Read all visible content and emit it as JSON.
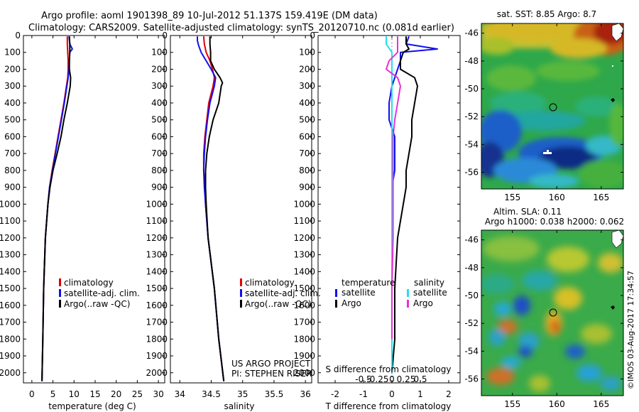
{
  "header": {
    "line1": "Argo profile: aoml 1901398_89 10-Jul-2012 51.137S 159.419E (DM data)",
    "line2": "Climatology: CARS2009. Satellite-adjusted climatology: synTS_20120710.nc (0.081d earlier)"
  },
  "colors": {
    "climatology": "#e00000",
    "satellite": "#1010ee",
    "argo": "#000000",
    "salinity_satellite": "#22e0e8",
    "salinity_argo": "#e830d8"
  },
  "chart_data": [
    {
      "type": "line",
      "id": "temperature",
      "xlabel": "temperature (deg C)",
      "xticks": [
        0,
        5,
        10,
        15,
        20,
        25,
        30
      ],
      "xlim": [
        -2,
        31.5
      ],
      "yticks": [
        0,
        100,
        200,
        300,
        400,
        500,
        600,
        700,
        800,
        900,
        1000,
        1100,
        1200,
        1300,
        1400,
        1500,
        1600,
        1700,
        1800,
        1900,
        2000
      ],
      "ylim": [
        0,
        2060
      ],
      "y_inverted": true,
      "legend": {
        "placement": "bottom-center",
        "entries": [
          "climatology",
          "satellite-adj. clim.",
          "Argo(..raw -QC)"
        ]
      },
      "series": [
        {
          "name": "climatology",
          "color_key": "climatology",
          "y": [
            5,
            50,
            100,
            150,
            200,
            250,
            300,
            400,
            500,
            600,
            700,
            800,
            900,
            1000,
            1200,
            1500,
            1800,
            2050
          ],
          "x": [
            8.4,
            8.4,
            8.5,
            8.6,
            8.6,
            8.5,
            8.2,
            7.6,
            6.9,
            6.2,
            5.5,
            4.8,
            4.2,
            3.8,
            3.2,
            2.8,
            2.6,
            2.4
          ]
        },
        {
          "name": "satellite-adj. clim.",
          "color_key": "satellite",
          "y": [
            5,
            50,
            80,
            100,
            150,
            200,
            250,
            300,
            400,
            500,
            600,
            700,
            800,
            900,
            1000,
            1200,
            1500,
            1800,
            2050
          ],
          "x": [
            8.8,
            9.0,
            9.6,
            9.0,
            8.9,
            8.8,
            8.6,
            8.3,
            7.7,
            7.0,
            6.3,
            5.6,
            4.9,
            4.2,
            3.8,
            3.2,
            2.8,
            2.6,
            2.4
          ]
        },
        {
          "name": "Argo(..raw -QC)",
          "color_key": "argo",
          "y": [
            5,
            50,
            100,
            150,
            200,
            250,
            300,
            400,
            500,
            600,
            700,
            800,
            900,
            1000,
            1200,
            1500,
            1800,
            2050
          ],
          "x": [
            8.9,
            9.0,
            9.0,
            8.9,
            8.9,
            9.2,
            9.1,
            8.4,
            7.6,
            6.9,
            6.0,
            5.0,
            4.3,
            3.8,
            3.2,
            2.8,
            2.6,
            2.4
          ]
        }
      ]
    },
    {
      "type": "line",
      "id": "salinity",
      "xlabel": "salinity",
      "xticks": [
        34,
        34.5,
        35,
        35.5,
        36
      ],
      "xlim": [
        33.85,
        36.1
      ],
      "yticks": [
        0,
        100,
        200,
        300,
        400,
        500,
        600,
        700,
        800,
        900,
        1000,
        1100,
        1200,
        1300,
        1400,
        1500,
        1600,
        1700,
        1800,
        1900,
        2000
      ],
      "ylim": [
        0,
        2060
      ],
      "y_inverted": true,
      "legend": {
        "placement": "bottom-center",
        "entries": [
          "climatology",
          "satellite-adj. clim.",
          "Argo(..raw -QC)"
        ]
      },
      "annotation": [
        "US ARGO PROJECT",
        "PI: STEPHEN RISER"
      ],
      "series": [
        {
          "name": "climatology",
          "color_key": "climatology",
          "y": [
            5,
            50,
            100,
            150,
            200,
            250,
            300,
            400,
            500,
            600,
            700,
            800,
            900,
            1000,
            1200,
            1500,
            1800,
            2050
          ],
          "x": [
            34.38,
            34.39,
            34.42,
            34.48,
            34.52,
            34.55,
            34.53,
            34.46,
            34.43,
            34.4,
            34.38,
            34.38,
            34.4,
            34.41,
            34.45,
            34.55,
            34.62,
            34.7
          ]
        },
        {
          "name": "satellite-adj. clim.",
          "color_key": "satellite",
          "y": [
            5,
            30,
            60,
            100,
            150,
            200,
            250,
            300,
            400,
            500,
            600,
            700,
            800,
            900,
            1000,
            1200,
            1500,
            1800,
            2050
          ],
          "x": [
            34.28,
            34.28,
            34.3,
            34.34,
            34.42,
            34.5,
            34.57,
            34.55,
            34.48,
            34.44,
            34.41,
            34.39,
            34.38,
            34.39,
            34.41,
            34.45,
            34.55,
            34.62,
            34.7
          ]
        },
        {
          "name": "Argo(..raw -QC)",
          "color_key": "argo",
          "y": [
            5,
            50,
            100,
            150,
            200,
            250,
            280,
            300,
            400,
            500,
            600,
            700,
            800,
            900,
            1000,
            1200,
            1500,
            1800,
            2050
          ],
          "x": [
            34.48,
            34.48,
            34.49,
            34.49,
            34.55,
            34.64,
            34.68,
            34.66,
            34.62,
            34.53,
            34.47,
            34.43,
            34.41,
            34.41,
            34.42,
            34.45,
            34.55,
            34.62,
            34.7
          ]
        }
      ]
    },
    {
      "type": "line",
      "id": "differences",
      "xlabel": "T difference from climatology",
      "xlabel2": "S difference from climatology",
      "xticks": [
        -2,
        -1,
        0,
        1,
        2
      ],
      "xlim": [
        -2.6,
        2.4
      ],
      "xticks_s": [
        -0.5,
        -0.25,
        0,
        0.25,
        0.5
      ],
      "xtick_labels_s": [
        "-0.5",
        "-0.25",
        "0",
        "0.25",
        "0.5"
      ],
      "yticks": [
        0,
        100,
        200,
        300,
        400,
        500,
        600,
        700,
        800,
        900,
        1000,
        1100,
        1200,
        1300,
        1400,
        1500,
        1600,
        1700,
        1800,
        1900,
        2000
      ],
      "ylim": [
        0,
        2060
      ],
      "y_inverted": true,
      "legend": {
        "placement": "bottom-center",
        "temperature_title": "temperature",
        "salinity_title": "salinity",
        "entries": [
          "satellite",
          "Argo",
          "satellite",
          "Argo"
        ]
      },
      "series": [
        {
          "name": "satellite",
          "group": "temperature",
          "color_key": "satellite",
          "y": [
            5,
            50,
            80,
            100,
            150,
            200,
            300,
            400,
            500,
            600,
            700,
            800,
            900,
            1000,
            1200,
            1500,
            1700,
            1800
          ],
          "x": [
            0.6,
            0.5,
            1.6,
            0.3,
            0.3,
            0.2,
            0.0,
            -0.1,
            -0.1,
            0.1,
            0.1,
            0.1,
            0.0,
            0.0,
            0.0,
            0.0,
            0.0,
            0.0
          ]
        },
        {
          "name": "Argo",
          "group": "temperature",
          "color_key": "argo",
          "y": [
            5,
            50,
            80,
            100,
            150,
            200,
            250,
            300,
            400,
            500,
            600,
            700,
            800,
            900,
            1000,
            1100,
            1200,
            1500,
            1800,
            2000
          ],
          "x": [
            0.5,
            0.5,
            0.6,
            0.4,
            0.3,
            0.3,
            0.8,
            0.9,
            0.8,
            0.7,
            0.7,
            0.6,
            0.5,
            0.5,
            0.4,
            0.3,
            0.2,
            0.1,
            0.1,
            0.0
          ]
        },
        {
          "name": "satellite",
          "group": "salinity",
          "color_key": "salinity_satellite",
          "y": [
            5,
            50,
            100,
            200,
            300,
            500,
            800,
            1200,
            1500,
            1800,
            2000
          ],
          "x": [
            -0.1,
            -0.1,
            0.0,
            0.0,
            0.0,
            0.0,
            0.0,
            0.0,
            0.0,
            0.0,
            0.0
          ]
        },
        {
          "name": "Argo",
          "group": "salinity",
          "color_key": "salinity_argo",
          "y": [
            5,
            50,
            100,
            150,
            200,
            250,
            300,
            400,
            500,
            600,
            800,
            1000,
            1200,
            1500,
            1800
          ],
          "x": [
            0.1,
            0.1,
            0.1,
            -0.05,
            -0.1,
            0.1,
            0.15,
            0.1,
            0.05,
            0.02,
            0.02,
            0.02,
            0.02,
            0.0,
            0.0
          ]
        }
      ]
    }
  ],
  "maps": {
    "sst": {
      "title": "sat. SST: 8.85 Argo: 8.7",
      "lon_ticks": [
        155,
        160,
        165
      ],
      "lat_ticks": [
        -46,
        -48,
        -50,
        -52,
        -54,
        -56
      ],
      "lon_range": [
        151.5,
        167.5
      ],
      "lat_range": [
        -45.3,
        -57.2
      ],
      "profile_position": {
        "lon": 159.419,
        "lat": -51.137
      }
    },
    "sla": {
      "title_line1": "Altim. SLA: 0.11",
      "title_line2": "Argo h1000: 0.038 h2000: 0.062",
      "lon_ticks": [
        155,
        160,
        165
      ],
      "lat_ticks": [
        -46,
        -48,
        -50,
        -52,
        -54,
        -56
      ],
      "lon_range": [
        151.5,
        167.5
      ],
      "lat_range": [
        -45.3,
        -57.2
      ],
      "profile_position": {
        "lon": 159.419,
        "lat": -51.137
      }
    }
  },
  "credit": "©IMOS 03-Aug-2017 17:34:57"
}
